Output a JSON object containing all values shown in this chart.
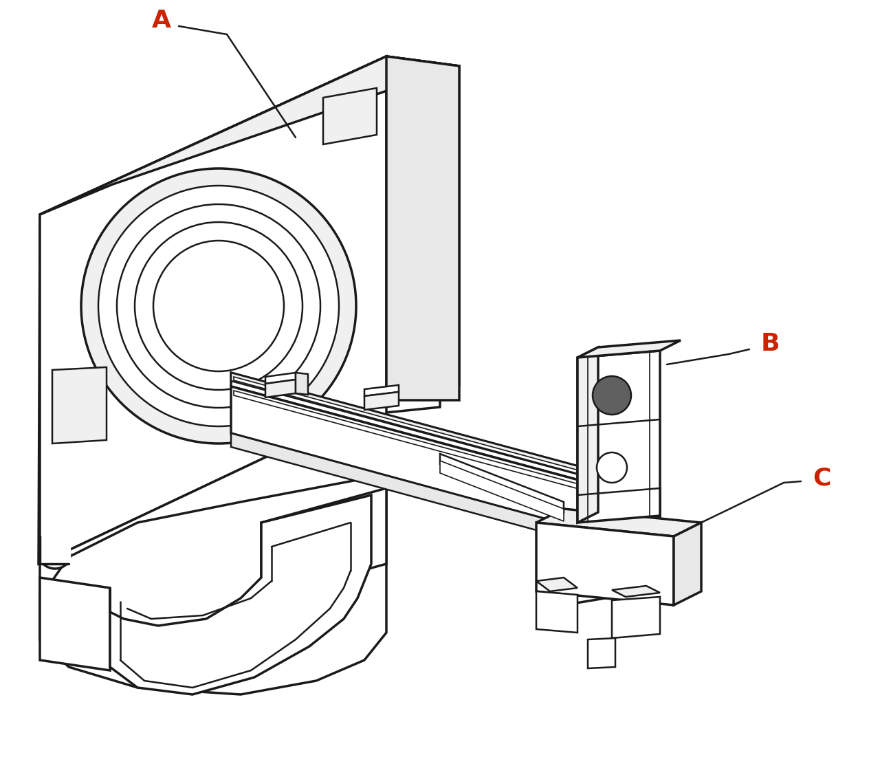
{
  "background_color": "#ffffff",
  "line_color": "#1a1a1a",
  "label_color": "#cc2200",
  "label_A": "A",
  "label_B": "B",
  "label_C": "C",
  "figsize": [
    12.8,
    11.3
  ],
  "dpi": 100,
  "lw_main": 2.5,
  "lw_med": 1.8,
  "lw_thin": 1.2
}
